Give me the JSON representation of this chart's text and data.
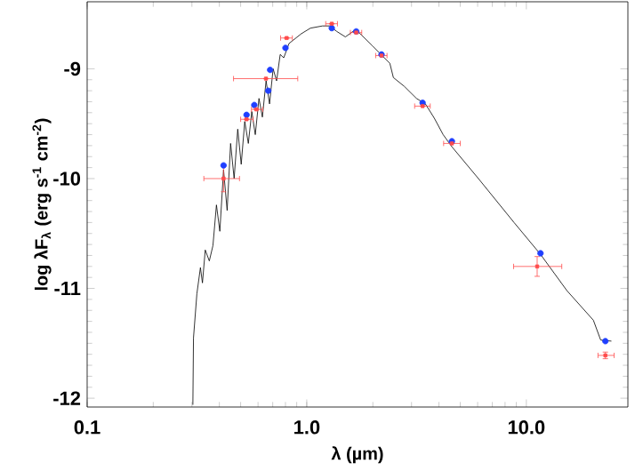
{
  "chart_data": {
    "type": "scatter",
    "xlabel": "λ (µm)",
    "ylabel": "log λF$_{λ}$ (erg s$^{-1}$ cm$^{-2}$)",
    "log": "x",
    "xlim": [
      0.1,
      29
    ],
    "ylim": [
      -12.08,
      -8.39
    ],
    "xticks": [
      {
        "value": 0.1,
        "label": "0.1"
      },
      {
        "value": 1,
        "label": "1.0"
      },
      {
        "value": 10,
        "label": "10.0"
      }
    ],
    "yticks": [
      -12,
      -11,
      -10,
      -9
    ],
    "grid": false,
    "series": [
      {
        "type": "line",
        "color": "#000000",
        "marker": "none",
        "x": [
          0.303,
          0.305,
          0.316,
          0.328,
          0.335,
          0.345,
          0.36,
          0.374,
          0.388,
          0.402,
          0.418,
          0.434,
          0.45,
          0.467,
          0.485,
          0.503,
          0.522,
          0.542,
          0.562,
          0.583,
          0.606,
          0.628,
          0.653,
          0.677,
          0.703,
          0.729,
          0.757,
          0.786,
          0.83,
          0.946,
          1.04,
          1.18,
          1.27,
          1.37,
          1.5,
          1.65,
          1.75,
          1.99,
          2.18,
          2.39,
          2.48,
          2.78,
          3.16,
          3.47,
          3.81,
          4.18,
          4.58,
          6.05,
          8.79,
          11.6,
          15.3,
          20.2,
          21.8,
          24.4
        ],
        "values": [
          -12.06,
          -11.45,
          -11.05,
          -10.81,
          -10.95,
          -10.65,
          -10.75,
          -10.61,
          -10.24,
          -10.48,
          -9.92,
          -10.29,
          -9.68,
          -10.0,
          -9.55,
          -9.87,
          -9.48,
          -9.68,
          -9.39,
          -9.6,
          -9.27,
          -9.44,
          -9.11,
          -9.32,
          -9.0,
          -9.11,
          -8.87,
          -8.9,
          -8.77,
          -8.68,
          -8.63,
          -8.61,
          -8.61,
          -8.66,
          -8.71,
          -8.65,
          -8.68,
          -8.79,
          -8.87,
          -8.95,
          -9.08,
          -9.16,
          -9.27,
          -9.32,
          -9.45,
          -9.6,
          -9.71,
          -10.0,
          -10.4,
          -10.69,
          -11.02,
          -11.29,
          -11.47,
          -11.48
        ]
      },
      {
        "color": "#1f3fff",
        "marker": "circle",
        "x": [
          0.418,
          0.532,
          0.577,
          0.668,
          0.681,
          0.8,
          1.3,
          1.68,
          2.19,
          3.37,
          4.58,
          11.6,
          22.9
        ],
        "values": [
          -9.88,
          -9.42,
          -9.33,
          -9.2,
          -9.01,
          -8.81,
          -8.63,
          -8.66,
          -8.87,
          -9.31,
          -9.66,
          -10.68,
          -11.48
        ]
      },
      {
        "color": "#ff4b4b",
        "marker": "square",
        "x": [
          0.418,
          0.532,
          0.59,
          0.652,
          0.81,
          1.3,
          1.68,
          2.19,
          3.37,
          4.58,
          11.2,
          22.9
        ],
        "values": [
          -10.0,
          -9.46,
          -9.37,
          -9.09,
          -8.72,
          -8.59,
          -8.67,
          -8.88,
          -9.34,
          -9.68,
          -10.8,
          -11.61
        ],
        "errors": [
          0.12,
          null,
          null,
          null,
          null,
          null,
          null,
          null,
          null,
          null,
          0.09,
          0.03
        ],
        "xerrors": [
          [
            0.34,
            0.494
          ],
          [
            0.5,
            0.57
          ],
          [
            0.56,
            0.63
          ],
          [
            0.464,
            0.91
          ],
          [
            0.76,
            0.86
          ],
          [
            1.22,
            1.38
          ],
          [
            1.58,
            1.78
          ],
          [
            2.06,
            2.32
          ],
          [
            3.1,
            3.65
          ],
          [
            4.2,
            5.0
          ],
          [
            8.75,
            14.5
          ],
          [
            21.2,
            25.1
          ]
        ]
      }
    ]
  }
}
